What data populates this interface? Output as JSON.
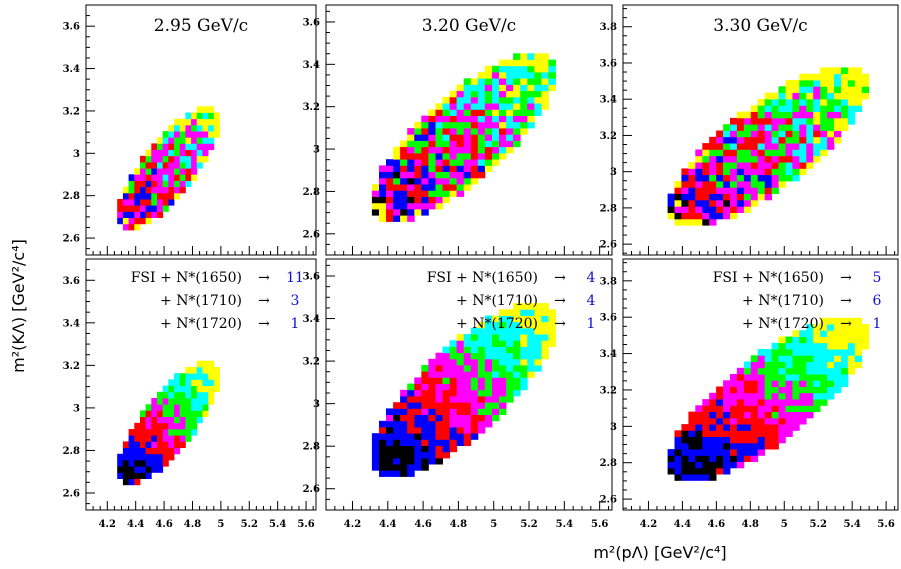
{
  "figure": {
    "xlabel": "m²(pΛ)  [GeV²/c⁴]",
    "ylabel": "m²(KΛ)  [GeV²/c⁴]"
  },
  "colors": {
    "palette": [
      "#000000",
      "#0000ff",
      "#ff0000",
      "#ff00ff",
      "#00ff00",
      "#00ffff",
      "#ffff00"
    ],
    "legend_numbers": "#1010d0"
  },
  "chart_data": [
    {
      "type": "heatmap",
      "row": "top",
      "column": 1,
      "title": "2.95 GeV/c",
      "xlim": [
        4.05,
        5.67
      ],
      "ylim": [
        2.52,
        3.7
      ],
      "x_ticks": [
        "4.2",
        "4.4",
        "4.6",
        "4.8",
        "5",
        "5.2",
        "5.4",
        "5.6"
      ],
      "y_ticks": [
        "2.6",
        "2.8",
        "3",
        "3.2",
        "3.4",
        "3.6"
      ],
      "region": {
        "x_lo": 4.19,
        "x_hi": 5.07,
        "y_lo": 2.58,
        "y_hi": 3.28
      },
      "colors": "#000000 #0000ff #ff0000 #ff00ff #00ff00 #00ffff #ffff00",
      "pattern": "speckled"
    },
    {
      "type": "heatmap",
      "row": "top",
      "column": 2,
      "title": "3.20 GeV/c",
      "xlim": [
        4.05,
        5.67
      ],
      "ylim": [
        2.5,
        3.68
      ],
      "x_ticks": [
        "4.2",
        "4.4",
        "4.6",
        "4.8",
        "5",
        "5.2",
        "5.4",
        "5.6"
      ],
      "y_ticks": [
        "2.6",
        "2.8",
        "3",
        "3.2",
        "3.4",
        "3.6"
      ],
      "region": {
        "x_lo": 4.19,
        "x_hi": 5.47,
        "y_lo": 2.57,
        "y_hi": 3.54
      },
      "colors": "#000000 #0000ff #ff0000 #ff00ff #00ff00 #00ffff #ffff00",
      "pattern": "speckled"
    },
    {
      "type": "heatmap",
      "row": "top",
      "column": 3,
      "title": "3.30 GeV/c",
      "xlim": [
        4.05,
        5.67
      ],
      "ylim": [
        2.54,
        3.92
      ],
      "x_ticks": [
        "4.2",
        "4.4",
        "4.6",
        "4.8",
        "5",
        "5.2",
        "5.4",
        "5.6"
      ],
      "y_ticks": [
        "2.6",
        "2.8",
        "3",
        "3.2",
        "3.4",
        "3.6",
        "3.8"
      ],
      "region": {
        "x_lo": 4.19,
        "x_hi": 5.62,
        "y_lo": 2.6,
        "y_hi": 3.68
      },
      "colors": "#000000 #0000ff #ff0000 #ff00ff #00ff00 #00ffff #ffff00",
      "pattern": "speckled"
    },
    {
      "type": "heatmap",
      "row": "bottom",
      "column": 1,
      "legend": [
        {
          "label": "FSI + N*(1650)",
          "arrow": "→",
          "value": "11"
        },
        {
          "label": "+ N*(1710)",
          "arrow": "→",
          "value": "3"
        },
        {
          "label": "+ N*(1720)",
          "arrow": "→",
          "value": "1"
        }
      ],
      "xlim": [
        4.05,
        5.67
      ],
      "ylim": [
        2.52,
        3.7
      ],
      "x_ticks": [
        "4.2",
        "4.4",
        "4.6",
        "4.8",
        "5",
        "5.2",
        "5.4",
        "5.6"
      ],
      "y_ticks": [
        "2.6",
        "2.8",
        "3",
        "3.2",
        "3.4",
        "3.6"
      ],
      "region": {
        "x_lo": 4.19,
        "x_hi": 5.07,
        "y_lo": 2.58,
        "y_hi": 3.28
      },
      "colors": "#000000 #0000ff #ff0000 #ff00ff #00ff00 #00ffff #ffff00",
      "pattern": "banded"
    },
    {
      "type": "heatmap",
      "row": "bottom",
      "column": 2,
      "legend": [
        {
          "label": "FSI + N*(1650)",
          "arrow": "→",
          "value": "4"
        },
        {
          "label": "+ N*(1710)",
          "arrow": "→",
          "value": "4"
        },
        {
          "label": "+ N*(1720)",
          "arrow": "→",
          "value": "1"
        }
      ],
      "xlim": [
        4.05,
        5.67
      ],
      "ylim": [
        2.5,
        3.68
      ],
      "x_ticks": [
        "4.2",
        "4.4",
        "4.6",
        "4.8",
        "5",
        "5.2",
        "5.4",
        "5.6"
      ],
      "y_ticks": [
        "2.6",
        "2.8",
        "3",
        "3.2",
        "3.4",
        "3.6"
      ],
      "region": {
        "x_lo": 4.19,
        "x_hi": 5.47,
        "y_lo": 2.57,
        "y_hi": 3.56
      },
      "colors": "#000000 #0000ff #ff0000 #ff00ff #00ff00 #00ffff #ffff00",
      "pattern": "banded"
    },
    {
      "type": "heatmap",
      "row": "bottom",
      "column": 3,
      "legend": [
        {
          "label": "FSI + N*(1650)",
          "arrow": "→",
          "value": "5"
        },
        {
          "label": "+ N*(1710)",
          "arrow": "→",
          "value": "6"
        },
        {
          "label": "+ N*(1720)",
          "arrow": "→",
          "value": "1"
        }
      ],
      "xlim": [
        4.05,
        5.67
      ],
      "ylim": [
        2.54,
        3.92
      ],
      "x_ticks": [
        "4.2",
        "4.4",
        "4.6",
        "4.8",
        "5",
        "5.2",
        "5.4",
        "5.6"
      ],
      "y_ticks": [
        "2.6",
        "2.8",
        "3",
        "3.2",
        "3.4",
        "3.6",
        "3.8"
      ],
      "region": {
        "x_lo": 4.19,
        "x_hi": 5.62,
        "y_lo": 2.6,
        "y_hi": 3.7
      },
      "colors": "#000000 #0000ff #ff0000 #ff00ff #00ff00 #00ffff #ffff00",
      "pattern": "banded"
    }
  ]
}
